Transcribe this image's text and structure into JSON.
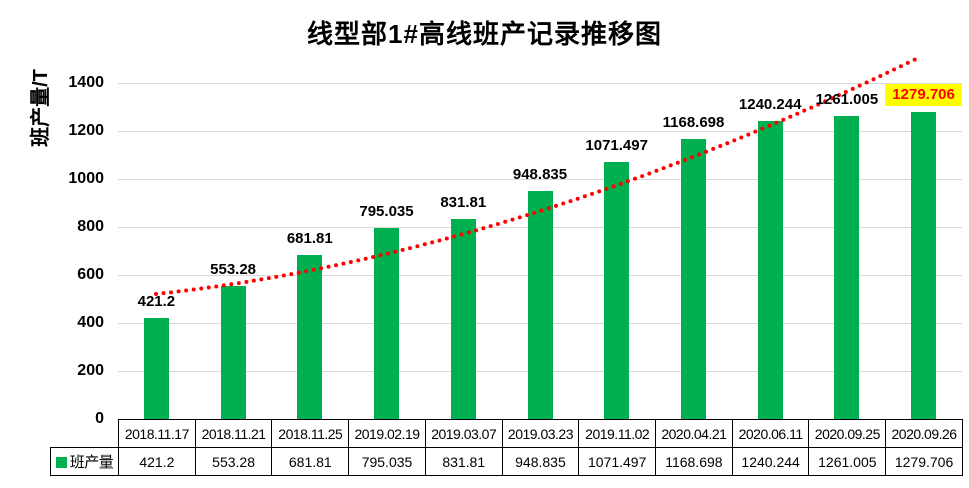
{
  "title": "线型部1#高线班产记录推移图",
  "y_axis": {
    "label": "班产量/T",
    "ticks": [
      "0",
      "200",
      "400",
      "600",
      "800",
      "1000",
      "1200",
      "1400"
    ]
  },
  "legend": {
    "label": "班产量",
    "swatch_color": "#00B050"
  },
  "chart_data": {
    "type": "bar",
    "title": "线型部1#高线班产记录推移图",
    "xlabel": "",
    "ylabel": "班产量/T",
    "ylim": [
      0,
      1400
    ],
    "ytick_step": 200,
    "grid": true,
    "legend_position": "bottom-table",
    "categories": [
      "2018.11.17",
      "2018.11.21",
      "2018.11.25",
      "2019.02.19",
      "2019.03.07",
      "2019.03.23",
      "2019.11.02",
      "2020.04.21",
      "2020.06.11",
      "2020.09.25",
      "2020.09.26"
    ],
    "series": [
      {
        "name": "班产量",
        "color": "#00B050",
        "values": [
          421.2,
          553.28,
          681.81,
          795.035,
          831.81,
          948.835,
          1071.497,
          1168.698,
          1240.244,
          1261.005,
          1279.706
        ],
        "value_labels": [
          "421.2",
          "553.28",
          "681.81",
          "795.035",
          "831.81",
          "948.835",
          "1071.497",
          "1168.698",
          "1240.244",
          "1261.005",
          "1279.706"
        ]
      }
    ],
    "trendline": {
      "style": "dotted",
      "color": "#FF0000"
    },
    "highlight": {
      "index": 10,
      "label": "1279.706",
      "background": "#FFFF00",
      "text_color": "#FF0000"
    }
  },
  "colors": {
    "bar": "#00B050",
    "trendline": "#FF0000",
    "highlight_bg": "#FFFF00",
    "highlight_text": "#FF0000",
    "gridline": "#D9D9D9",
    "table_border": "#000000"
  }
}
